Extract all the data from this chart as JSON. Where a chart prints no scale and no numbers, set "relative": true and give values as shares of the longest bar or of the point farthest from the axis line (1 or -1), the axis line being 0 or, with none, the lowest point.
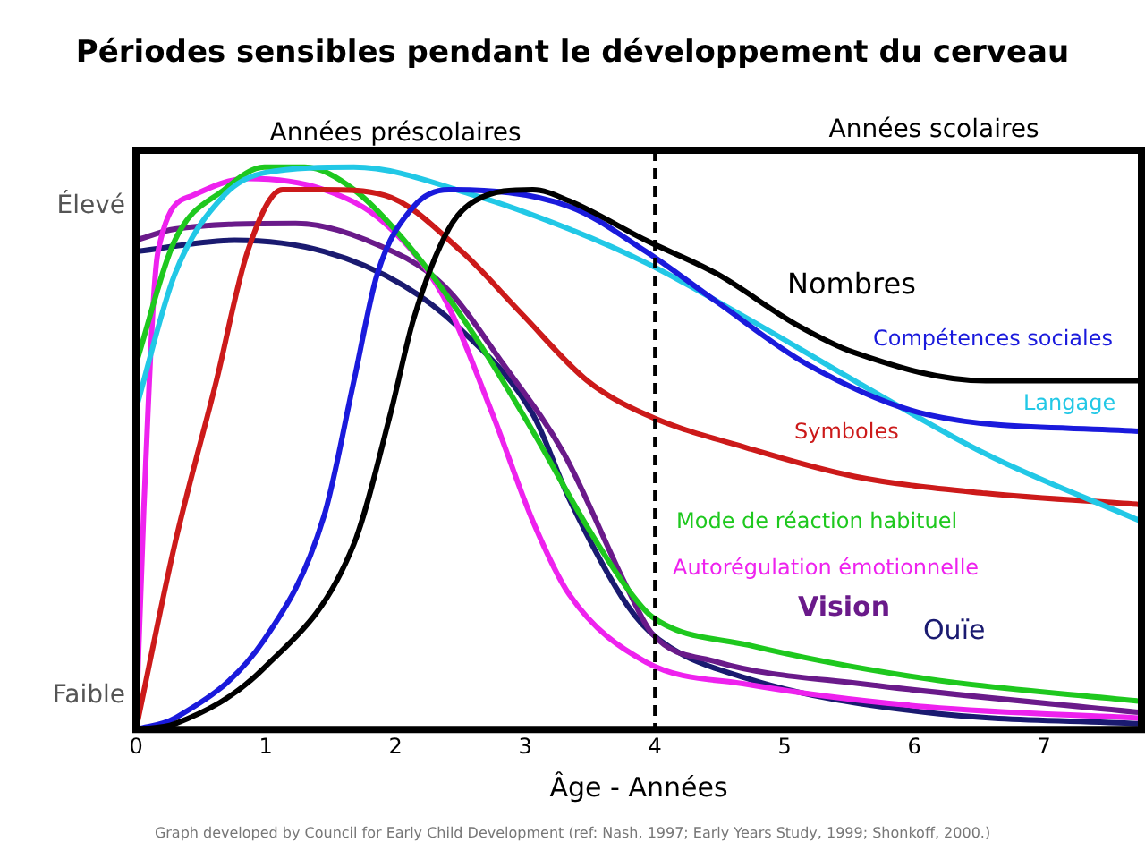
{
  "chart_data": {
    "type": "line",
    "title": "Périodes sensibles pendant le développement du cerveau",
    "xlabel": "Âge - Années",
    "annotations": [
      "Années préscolaires",
      "Années scolaires",
      "Élevé",
      "Faible",
      "Graph developed by Council for Early Child Development (ref: Nash, 1997; Early Years Study, 1999; Shonkoff, 2000.)"
    ],
    "relative": true,
    "xlim": [
      0,
      7.75
    ],
    "xticks": [
      0,
      1,
      2,
      3,
      4,
      5,
      6,
      7
    ],
    "grid": false,
    "legend": false,
    "line_style": "solid",
    "ref_lines": [
      {
        "axis": "x",
        "value": 4,
        "line_style": "dashed",
        "color": "#000000"
      }
    ],
    "series": [
      {
        "name": "Nombres",
        "color": "#000000",
        "x": [
          0,
          0.3,
          0.99,
          1.68,
          1.96,
          2.14,
          2.41,
          2.61,
          3.06,
          3.34,
          3.93,
          4.48,
          5.09,
          5.54,
          6.55,
          7.75
        ],
        "values": [
          0,
          0.01,
          0.11,
          0.33,
          0.56,
          0.73,
          0.89,
          0.94,
          0.96,
          0.94,
          0.87,
          0.81,
          0.72,
          0.67,
          0.62,
          0.62
        ]
      },
      {
        "name": "Compétences sociales",
        "color": "#1a1adc",
        "x": [
          0,
          0.3,
          0.99,
          1.45,
          1.68,
          1.86,
          2.14,
          2.41,
          3.34,
          3.93,
          4.48,
          5.17,
          6.1,
          7.75
        ],
        "values": [
          0,
          0.02,
          0.16,
          0.38,
          0.62,
          0.81,
          0.93,
          0.96,
          0.93,
          0.85,
          0.76,
          0.65,
          0.56,
          0.53
        ]
      },
      {
        "name": "Langage",
        "color": "#22c8e6",
        "x": [
          0,
          0.3,
          0.68,
          0.99,
          1.68,
          2.61,
          3.34,
          3.93,
          4.72,
          5.54,
          6.55,
          7.75
        ],
        "values": [
          0.57,
          0.81,
          0.95,
          0.99,
          1,
          0.95,
          0.89,
          0.83,
          0.73,
          0.62,
          0.49,
          0.37
        ]
      },
      {
        "name": "Symboles",
        "color": "#cc1a1a",
        "x": [
          0,
          0.3,
          0.62,
          0.86,
          1.13,
          1.45,
          1.92,
          2.51,
          2.97,
          3.48,
          3.93,
          4.72,
          5.54,
          6.55,
          7.75
        ],
        "values": [
          0,
          0.33,
          0.62,
          0.85,
          0.96,
          0.96,
          0.95,
          0.85,
          0.74,
          0.62,
          0.56,
          0.5,
          0.45,
          0.42,
          0.4
        ]
      },
      {
        "name": "Mode de réaction habituel",
        "color": "#1ec81e",
        "x": [
          0,
          0.3,
          0.68,
          0.99,
          1.3,
          1.68,
          2.14,
          2.61,
          3.06,
          3.48,
          3.79,
          3.98,
          4.72,
          6.1,
          7.75
        ],
        "values": [
          0.65,
          0.87,
          0.96,
          1,
          1,
          0.96,
          0.85,
          0.7,
          0.53,
          0.36,
          0.25,
          0.2,
          0.15,
          0.09,
          0.05
        ]
      },
      {
        "name": "Autorégulation émotionnelle",
        "color": "#ee22ee",
        "x": [
          0,
          0.06,
          0.17,
          0.44,
          0.86,
          1.45,
          1.92,
          2.37,
          2.75,
          3.06,
          3.34,
          3.93,
          4.72,
          6.1,
          7.75
        ],
        "values": [
          0,
          0.39,
          0.85,
          0.95,
          0.98,
          0.96,
          0.9,
          0.77,
          0.56,
          0.37,
          0.24,
          0.12,
          0.08,
          0.04,
          0.02
        ]
      },
      {
        "name": "Vision",
        "color": "#6a1a8a",
        "x": [
          0,
          0.3,
          1.23,
          1.78,
          2.37,
          2.83,
          3.3,
          3.79,
          3.98,
          4.48,
          5.64,
          7.75
        ],
        "values": [
          0.87,
          0.89,
          0.9,
          0.87,
          0.79,
          0.65,
          0.49,
          0.25,
          0.17,
          0.12,
          0.08,
          0.03
        ]
      },
      {
        "name": "Ouïe",
        "color": "#1a1a70",
        "x": [
          0,
          0.76,
          1.45,
          2.06,
          2.51,
          3.06,
          3.34,
          3.79,
          4.03,
          4.72,
          6.1,
          7.75
        ],
        "values": [
          0.85,
          0.87,
          0.85,
          0.79,
          0.71,
          0.56,
          0.41,
          0.22,
          0.16,
          0.09,
          0.03,
          0.01
        ]
      }
    ]
  }
}
